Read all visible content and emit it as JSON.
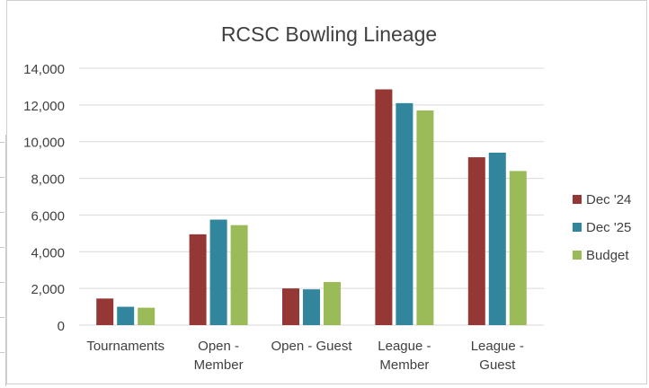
{
  "chart_data": {
    "type": "bar",
    "title": "RCSC Bowling Lineage",
    "xlabel": "",
    "ylabel": "",
    "categories": [
      [
        "Tournaments"
      ],
      [
        "Open -",
        "Member"
      ],
      [
        "Open - Guest"
      ],
      [
        "League -",
        "Member"
      ],
      [
        "League -",
        "Guest"
      ]
    ],
    "series": [
      {
        "name": "Dec '24",
        "color": "#953735",
        "values": [
          1450,
          4950,
          2000,
          12850,
          9150
        ]
      },
      {
        "name": "Dec '25",
        "color": "#31859C",
        "values": [
          1000,
          5750,
          1950,
          12100,
          9400
        ]
      },
      {
        "name": "Budget",
        "color": "#9BBB59",
        "values": [
          950,
          5450,
          2350,
          11700,
          8400
        ]
      }
    ],
    "ylim": [
      0,
      14000
    ],
    "yticks": [
      0,
      2000,
      4000,
      6000,
      8000,
      10000,
      12000,
      14000
    ],
    "ytick_labels": [
      "0",
      "2,000",
      "4,000",
      "6,000",
      "8,000",
      "10,000",
      "12,000",
      "14,000"
    ],
    "grid": true,
    "legend_position": "right"
  }
}
